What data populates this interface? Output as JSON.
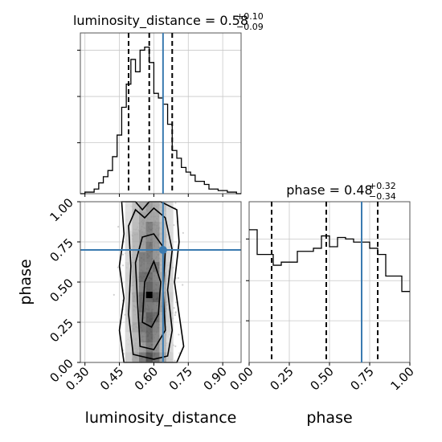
{
  "chart_data": [
    {
      "type": "histogram",
      "panel": "luminosity_distance marginal",
      "title": {
        "param": "luminosity_distance",
        "median": "0.58",
        "plus": "+0.10",
        "minus": "−0.09"
      },
      "xlim": [
        0.28,
        0.98
      ],
      "bins_x": [
        0.28,
        0.3,
        0.32,
        0.34,
        0.36,
        0.38,
        0.4,
        0.42,
        0.44,
        0.46,
        0.48,
        0.5,
        0.52,
        0.54,
        0.56,
        0.58,
        0.6,
        0.62,
        0.64,
        0.66,
        0.68,
        0.7,
        0.72,
        0.74,
        0.76,
        0.78,
        0.8,
        0.82,
        0.84,
        0.86,
        0.88,
        0.9,
        0.92,
        0.94,
        0.96,
        0.98
      ],
      "heights": [
        0.0,
        0.01,
        0.01,
        0.03,
        0.07,
        0.11,
        0.15,
        0.24,
        0.38,
        0.56,
        0.71,
        0.87,
        0.79,
        0.93,
        0.95,
        0.85,
        0.65,
        0.62,
        0.58,
        0.45,
        0.28,
        0.23,
        0.17,
        0.14,
        0.12,
        0.08,
        0.08,
        0.06,
        0.03,
        0.03,
        0.02,
        0.02,
        0.01,
        0.01,
        0.0
      ],
      "quantile_lines": [
        0.49,
        0.58,
        0.68
      ],
      "truth": 0.64
    },
    {
      "type": "histogram",
      "panel": "phase marginal",
      "title": {
        "param": "phase",
        "median": "0.48",
        "plus": "+0.32",
        "minus": "−0.34"
      },
      "xlim": [
        0,
        1
      ],
      "xticks": [
        "0.00",
        "0.25",
        "0.50",
        "0.75",
        "1.00"
      ],
      "xlabel": "phase",
      "bins_x": [
        0.0,
        0.05,
        0.1,
        0.15,
        0.2,
        0.25,
        0.3,
        0.35,
        0.4,
        0.45,
        0.5,
        0.55,
        0.6,
        0.65,
        0.7,
        0.75,
        0.8,
        0.85,
        0.9,
        0.95,
        1.0
      ],
      "heights": [
        0.86,
        0.7,
        0.7,
        0.63,
        0.65,
        0.65,
        0.72,
        0.72,
        0.74,
        0.82,
        0.75,
        0.81,
        0.8,
        0.78,
        0.78,
        0.74,
        0.7,
        0.56,
        0.56,
        0.46
      ],
      "quantile_lines": [
        0.14,
        0.48,
        0.8
      ],
      "truth": 0.7
    },
    {
      "type": "scatter-density",
      "panel": "joint",
      "xlim": [
        0.28,
        0.98
      ],
      "ylim": [
        0,
        1
      ],
      "xticks": [
        "0.30",
        "0.45",
        "0.60",
        "0.75",
        "0.90"
      ],
      "yticks": [
        "0.00",
        "0.25",
        "0.50",
        "0.75",
        "1.00"
      ],
      "xlabel": "luminosity_distance",
      "ylabel": "phase",
      "truth": {
        "x": 0.64,
        "y": 0.7
      },
      "density_peak": {
        "x": 0.58,
        "y": 0.42
      }
    }
  ]
}
